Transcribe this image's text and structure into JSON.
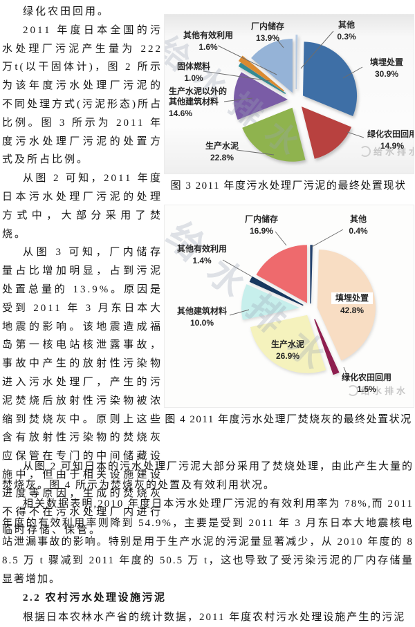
{
  "left_paragraphs": [
    "绿化农田回用。",
    "2011 年度日本全国的污水处理厂污泥产生量为 222 万t(以干固体计)，图 2 所示为该年度污水处理厂污泥的不同处理方式(污泥形态)所占比例。图 3 所示为 2011 年度污水处理厂污泥的处置方式及所占比例。",
    "从图 2 可知，2011 年度日本污水处理厂污泥的处理方式中，大部分采用了焚烧。",
    "从图 3 可知，厂内储存量占比增加明显，占到污泥处置总量的 13.9%。原因是受到 2011 年 3 月东日本大地震的影响。该地震造成福岛第一核电站核泄露事故，事故中产生的放射性污染物进入污水处理厂，产生的污泥焚烧后放射性污染物被浓缩到焚烧灰中。原则上这些含有放射性污染物的焚烧灰应保管在专门的中间储藏设施中，但由于相关设施建设进度等原因，生成的焚烧灰不得不在污水处理厂内进行临时存储、保管。"
  ],
  "bottom_paragraphs": [
    "从图 2 可知日本的污水处理厂污泥大部分采用了焚烧处理，由此产生大量的焚烧灰。图 4 所示为焚烧灰的处置及有效利用状况。",
    "相关数据表明,2010 年度日本污水处理厂污泥的有效利用率为 78%,而 2011 年度的有效利用率则降到 54.9%，主要是受到 2011 年 3 月东日本大地震核电站泄漏事故的影响。特别是用于生产水泥的污泥量显著减少，从 2010 年度的 88.5 万 t 骤减到 2011 年度的 50.5 万 t，这也导致了受污染污泥的厂内存储量显著增加。"
  ],
  "section_heading": "2.2 农村污水处理设施污泥",
  "last_paragraph": "根据日本农林水产省的统计数据，2011 年度农村污水处理设施产生的污泥",
  "figures": [
    {
      "caption": "图 3 2011 年度污水处理厂污泥的最终处置现状",
      "watermark": "给水排水",
      "logo": "给水排水"
    },
    {
      "caption": "图 4 2011 年度污水处理厂焚烧灰的最终处置状况",
      "watermark": "给水排水",
      "logo": "给水排水"
    }
  ],
  "chart_data": [
    {
      "type": "pie",
      "title": "2011年度污水处理厂污泥的最终处置现状",
      "units": "%",
      "direction": "clockwise",
      "start_angle_deg": 0,
      "exploded": true,
      "slices": [
        {
          "label": "其他",
          "value": 0.3,
          "pct": "0.3%",
          "color": "#b8cce4"
        },
        {
          "label": "填埋处置",
          "value": 30.9,
          "pct": "30.9%",
          "color": "#3e6fa6"
        },
        {
          "label": "绿化农田回用",
          "value": 14.9,
          "pct": "14.9%",
          "color": "#b8413f"
        },
        {
          "label": "生产水泥",
          "value": 22.8,
          "pct": "22.8%",
          "color": "#8fb34e"
        },
        {
          "label": "生产水泥以外的\n其他建筑材料",
          "value": 14.6,
          "pct": "14.6%",
          "color": "#7a5ca6"
        },
        {
          "label": "固体燃料",
          "value": 1.0,
          "pct": "1.0%",
          "color": "#2e8f99"
        },
        {
          "label": "其他有效利用",
          "value": 1.6,
          "pct": "1.6%",
          "color": "#db8a30"
        },
        {
          "label": "厂内储存",
          "value": 13.9,
          "pct": "13.9%",
          "color": "#95b3d7"
        }
      ]
    },
    {
      "type": "pie",
      "title": "2011年度污水处理厂焚烧灰的最终处置状况",
      "units": "%",
      "direction": "clockwise",
      "start_angle_deg": 0,
      "exploded": true,
      "slices": [
        {
          "label": "其他",
          "value": 0.4,
          "pct": "0.4%",
          "color": "#24426e"
        },
        {
          "label": "填埋处置",
          "value": 42.8,
          "pct": "42.8%",
          "color": "#f8ddc3"
        },
        {
          "label": "绿化农田回用",
          "value": 1.5,
          "pct": "1.5%",
          "color": "#8e1f4f"
        },
        {
          "label": "生产水泥",
          "value": 26.9,
          "pct": "26.9%",
          "color": "#f5f2bd"
        },
        {
          "label": "其他建筑材料",
          "value": 10.0,
          "pct": "10.0%",
          "color": "#c7efec"
        },
        {
          "label": "其他有效利用",
          "value": 1.4,
          "pct": "1.4%",
          "color": "#17375e"
        },
        {
          "label": "厂内储存",
          "value": 16.9,
          "pct": "16.9%",
          "color": "#ee6a6d"
        }
      ]
    }
  ]
}
